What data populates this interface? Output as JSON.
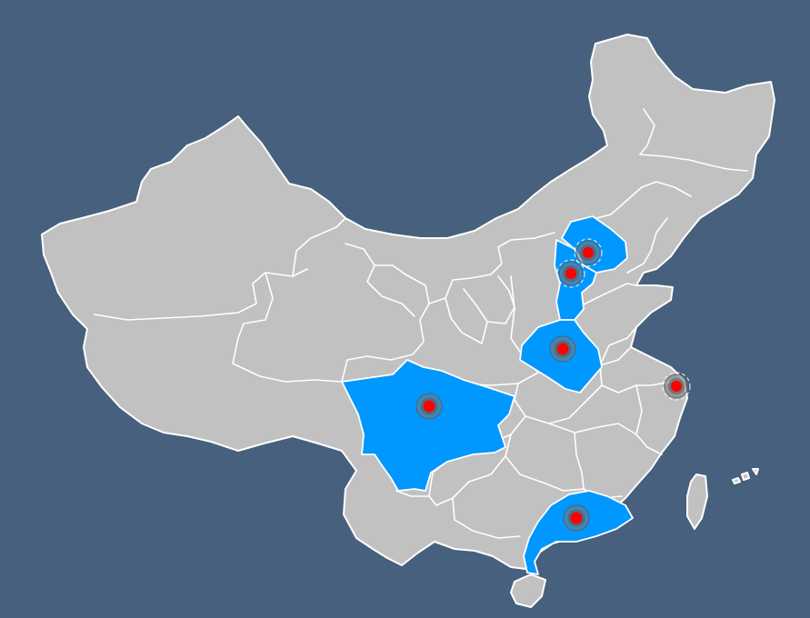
{
  "map": {
    "background_color": "#46607d",
    "land_color": "#c1c1c1",
    "highlight_color": "#0097ff",
    "marker_color": "#ff0000",
    "highlighted_regions": [
      "beijing",
      "hebei",
      "henan",
      "sichuan",
      "guangdong"
    ],
    "markers": [
      {
        "id": "marker-beijing",
        "style": "pulse-dashed"
      },
      {
        "id": "marker-hebei",
        "style": "pulse-dashed"
      },
      {
        "id": "marker-henan",
        "style": "pulse"
      },
      {
        "id": "marker-sichuan",
        "style": "pulse"
      },
      {
        "id": "marker-guangdong",
        "style": "pulse"
      },
      {
        "id": "marker-shanghai",
        "style": "pulse-dashed"
      }
    ]
  }
}
